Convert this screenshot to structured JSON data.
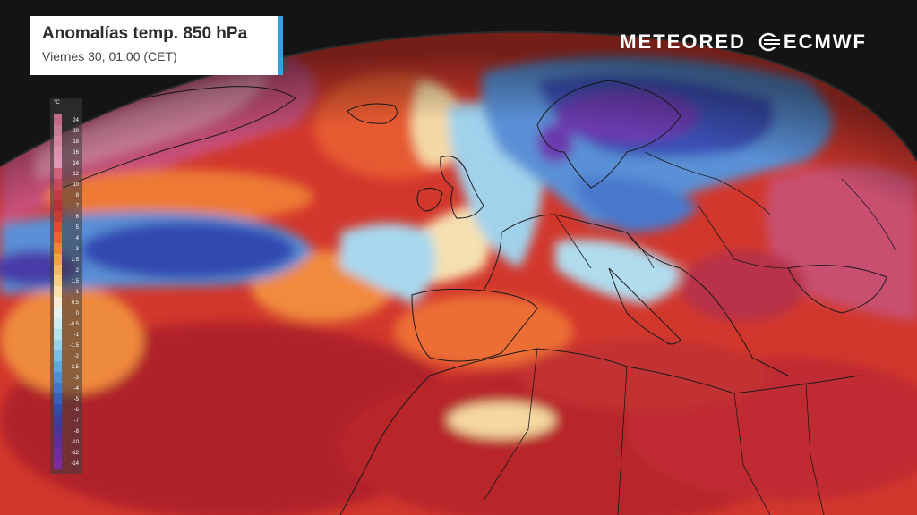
{
  "title": {
    "main": "Anomalías temp. 850 hPa",
    "subtitle": "Viernes 30, 01:00 (CET)"
  },
  "logos": {
    "meteored": "METEORED",
    "ecmwf": "ECMWF"
  },
  "legend": {
    "unit": "°C",
    "labels": [
      "24",
      "20",
      "18",
      "16",
      "14",
      "12",
      "10",
      "8",
      "7",
      "6",
      "5",
      "4",
      "3",
      "2.5",
      "2",
      "1.5",
      "1",
      "0.5",
      "0",
      "-0.5",
      "-1",
      "-1.5",
      "-2",
      "-2.5",
      "-3",
      "-4",
      "-5",
      "-6",
      "-7",
      "-8",
      "-10",
      "-12",
      "-14"
    ],
    "colors": [
      "#c06a88",
      "#c77a94",
      "#d486a0",
      "#dc8fad",
      "#e296b7",
      "#d0607c",
      "#c8485c",
      "#c13a44",
      "#b8303a",
      "#c63c32",
      "#d84e2e",
      "#e6682e",
      "#ee8438",
      "#f2a04e",
      "#f5b866",
      "#f7cd82",
      "#f8dfa6",
      "#f4ecd6",
      "#e6f3f3",
      "#cdeef2",
      "#b2e3ee",
      "#94d4ea",
      "#78c0e4",
      "#5ea8dc",
      "#4d8fd4",
      "#3f76c8",
      "#3560bc",
      "#2f4ca8",
      "#3a3c9e",
      "#4b339a",
      "#5d2e9a",
      "#6e2c9c",
      "#7a2ca0"
    ]
  },
  "map": {
    "colors": {
      "background": "#141414",
      "globe_warm": "#d2372c",
      "globe_hot": "#b0222a",
      "pink": "#c8507a",
      "light_pink": "#e08aa8",
      "orange": "#f08a3c",
      "cream": "#f6e0b0",
      "light_blue": "#a8d8ee",
      "mid_blue": "#5a90d6",
      "deep_blue": "#3248b0",
      "purple": "#6a3aae",
      "coast": "#1a1a1a"
    }
  }
}
